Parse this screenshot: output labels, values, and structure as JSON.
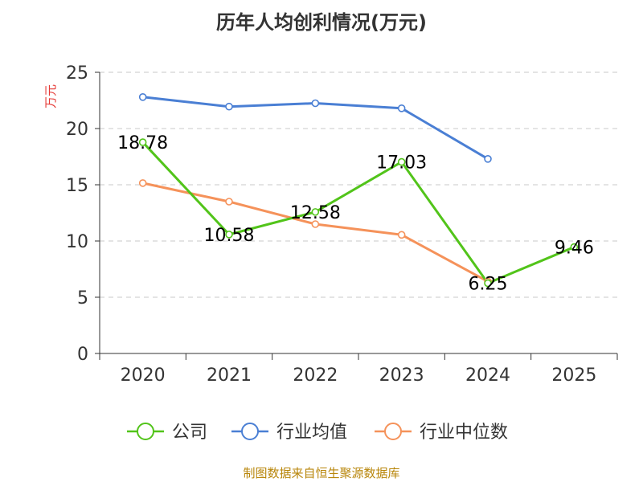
{
  "source_text": "制图数据来自恒生聚源数据库",
  "chart_data": {
    "type": "line",
    "title": "历年人均创利情况(万元)",
    "ylabel": "万元",
    "xlabel": "",
    "categories": [
      "2020",
      "2021",
      "2022",
      "2023",
      "2024",
      "2025"
    ],
    "ylim": [
      0,
      25
    ],
    "yticks": [
      "0",
      "5",
      "10",
      "15",
      "20",
      "25"
    ],
    "grid": true,
    "legend_position": "bottom",
    "series": [
      {
        "name": "公司",
        "color": "#52c41a",
        "values": [
          18.78,
          10.58,
          12.58,
          17.03,
          6.25,
          9.46
        ],
        "labels": [
          "18.78",
          "10.58",
          "12.58",
          "17.03",
          "6.25",
          "9.46"
        ]
      },
      {
        "name": "行业均值",
        "color": "#4a7fd4",
        "values": [
          22.8,
          21.95,
          22.25,
          21.8,
          17.3,
          null
        ]
      },
      {
        "name": "行业中位数",
        "color": "#f5925a",
        "values": [
          15.15,
          13.5,
          11.5,
          10.55,
          6.4,
          null
        ]
      }
    ]
  }
}
